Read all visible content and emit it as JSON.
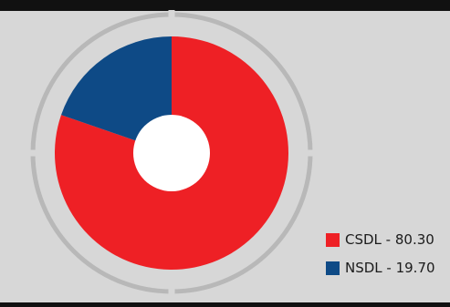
{
  "chart_data": {
    "type": "pie",
    "variant": "donut",
    "categories": [
      "CSDL",
      "NSDL"
    ],
    "values": [
      80.3,
      19.7
    ],
    "colors": [
      "#ee2025",
      "#0e4a86"
    ],
    "legend_placement": "bottom-right",
    "legend": [
      {
        "label": "CSDL - 80.30",
        "color": "#ee2025"
      },
      {
        "label": "NSDL - 19.70",
        "color": "#0e4a86"
      }
    ]
  },
  "colors": {
    "panel_background": "#d7d7d7",
    "top_bar": "#111111",
    "ring": "#b8b8b8",
    "donut_hole": "#ffffff"
  }
}
